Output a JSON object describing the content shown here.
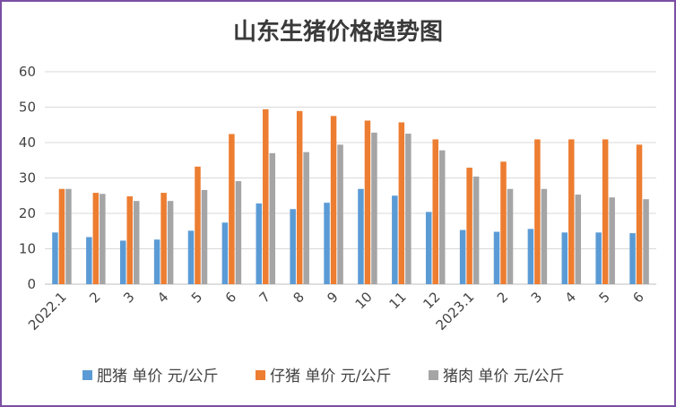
{
  "chart_data": {
    "type": "bar",
    "title": "山东生猪价格趋势图",
    "xlabel": "",
    "ylabel": "",
    "ylim": [
      0,
      60
    ],
    "yticks": [
      0,
      10,
      20,
      30,
      40,
      50,
      60
    ],
    "grid": true,
    "legend_position": "bottom",
    "categories": [
      "2022.1",
      "2",
      "3",
      "4",
      "5",
      "6",
      "7",
      "8",
      "9",
      "10",
      "11",
      "12",
      "2023.1",
      "2",
      "3",
      "4",
      "5",
      "6"
    ],
    "series": [
      {
        "name": "肥猪 单价 元/公斤",
        "color": "#5b9bd5",
        "values": [
          14.6,
          13.3,
          12.3,
          12.6,
          15.1,
          17.4,
          22.8,
          21.2,
          23.0,
          26.9,
          25.0,
          20.4,
          15.3,
          14.8,
          15.6,
          14.6,
          14.6,
          14.4
        ]
      },
      {
        "name": "仔猪 单价 元/公斤",
        "color": "#ed7d31",
        "values": [
          26.9,
          25.8,
          24.8,
          25.8,
          33.2,
          42.4,
          49.4,
          48.9,
          47.5,
          46.2,
          45.7,
          40.9,
          32.9,
          34.6,
          40.9,
          40.9,
          40.9,
          39.4
        ]
      },
      {
        "name": "猪肉 单价 元/公斤",
        "color": "#a5a5a5",
        "values": [
          26.9,
          25.5,
          23.5,
          23.5,
          26.6,
          29.1,
          37.0,
          37.3,
          39.4,
          42.8,
          42.5,
          37.8,
          30.4,
          26.9,
          26.9,
          25.3,
          24.5,
          24.0
        ]
      }
    ]
  }
}
